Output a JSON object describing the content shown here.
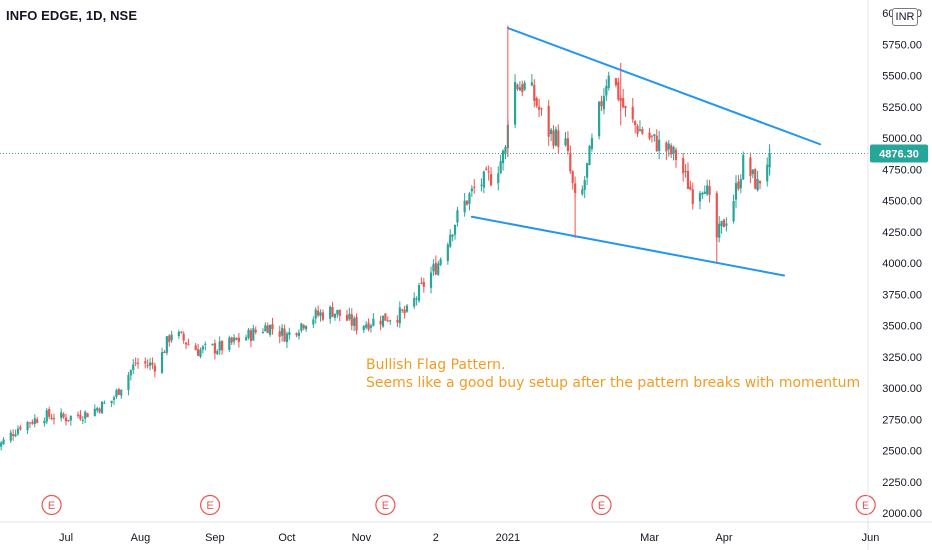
{
  "header": {
    "symbol_title": "INFO EDGE, 1D, NSE",
    "currency": "INR"
  },
  "annotation": {
    "line1": "Bullish Flag Pattern.",
    "line2": "Seems like a good buy setup after the pattern breaks with momentum"
  },
  "colors": {
    "up": "#26a69a",
    "down": "#ef5350",
    "trendline": "#2196f3",
    "annotation": "#f39b1f",
    "price_label_bg": "#26a69a",
    "earnings": "#ef5350"
  },
  "chart_data": {
    "type": "candlestick",
    "x_axis_ticks": [
      {
        "label": "Jul",
        "date": "2020-07-01"
      },
      {
        "label": "Aug",
        "date": "2020-08-01"
      },
      {
        "label": "Sep",
        "date": "2020-09-01"
      },
      {
        "label": "Oct",
        "date": "2020-10-01"
      },
      {
        "label": "Nov",
        "date": "2020-11-01"
      },
      {
        "label": "2",
        "date": "2020-12-02"
      },
      {
        "label": "2021",
        "date": "2021-01-01"
      },
      {
        "label": "Mar",
        "date": "2021-03-01"
      },
      {
        "label": "Apr",
        "date": "2021-04-01"
      },
      {
        "label": "Jun",
        "date": "2021-06-01"
      }
    ],
    "y_axis_ticks": [
      "2000.00",
      "2250.00",
      "2500.00",
      "2750.00",
      "3000.00",
      "3250.00",
      "3500.00",
      "3750.00",
      "4000.00",
      "4250.00",
      "4500.00",
      "4750.00",
      "5000.00",
      "5250.00",
      "5500.00",
      "5750.00",
      "6000.00"
    ],
    "ylim": [
      2000,
      6000
    ],
    "last_price": "4876.30",
    "last_price_value": 4876.3,
    "earnings_marker_label": "E",
    "earnings_dates": [
      "2020-06-25",
      "2020-08-30",
      "2020-11-11",
      "2021-02-09",
      "2021-05-30"
    ],
    "trendlines": [
      {
        "name": "upper",
        "from": {
          "date": "2021-01-01",
          "price": 5880
        },
        "to": {
          "date": "2021-05-11",
          "price": 4950
        }
      },
      {
        "name": "lower",
        "from": {
          "date": "2020-12-17",
          "price": 4370
        },
        "to": {
          "date": "2021-04-26",
          "price": 3900
        }
      }
    ],
    "path_points": [
      {
        "date": "2020-06-02",
        "price": 2520
      },
      {
        "date": "2020-06-12",
        "price": 2700
      },
      {
        "date": "2020-06-22",
        "price": 2780
      },
      {
        "date": "2020-07-01",
        "price": 2760
      },
      {
        "date": "2020-07-10",
        "price": 2800
      },
      {
        "date": "2020-07-20",
        "price": 2900
      },
      {
        "date": "2020-07-30",
        "price": 3200
      },
      {
        "date": "2020-08-08",
        "price": 3180
      },
      {
        "date": "2020-08-14",
        "price": 3450
      },
      {
        "date": "2020-08-25",
        "price": 3300
      },
      {
        "date": "2020-09-05",
        "price": 3330
      },
      {
        "date": "2020-09-15",
        "price": 3420
      },
      {
        "date": "2020-09-23",
        "price": 3500
      },
      {
        "date": "2020-10-01",
        "price": 3420
      },
      {
        "date": "2020-10-10",
        "price": 3560
      },
      {
        "date": "2020-10-20",
        "price": 3620
      },
      {
        "date": "2020-10-30",
        "price": 3500
      },
      {
        "date": "2020-11-10",
        "price": 3560
      },
      {
        "date": "2020-11-20",
        "price": 3600
      },
      {
        "date": "2020-11-27",
        "price": 3830
      },
      {
        "date": "2020-12-03",
        "price": 4000
      },
      {
        "date": "2020-12-08",
        "price": 4250
      },
      {
        "date": "2020-12-13",
        "price": 4450
      },
      {
        "date": "2020-12-19",
        "price": 4620
      },
      {
        "date": "2020-12-26",
        "price": 4700
      },
      {
        "date": "2020-12-31",
        "price": 4900
      },
      {
        "date": "2021-01-02",
        "price": 5450
      },
      {
        "date": "2021-01-10",
        "price": 5400
      },
      {
        "date": "2021-01-18",
        "price": 5050
      },
      {
        "date": "2021-01-25",
        "price": 4950
      },
      {
        "date": "2021-01-30",
        "price": 4380
      },
      {
        "date": "2021-02-05",
        "price": 4950
      },
      {
        "date": "2021-02-12",
        "price": 5550
      },
      {
        "date": "2021-02-20",
        "price": 5150
      },
      {
        "date": "2021-03-01",
        "price": 5000
      },
      {
        "date": "2021-03-12",
        "price": 4850
      },
      {
        "date": "2021-03-19",
        "price": 4550
      },
      {
        "date": "2021-03-24",
        "price": 4650
      },
      {
        "date": "2021-03-29",
        "price": 4200
      },
      {
        "date": "2021-04-04",
        "price": 4450
      },
      {
        "date": "2021-04-09",
        "price": 4800
      },
      {
        "date": "2021-04-15",
        "price": 4620
      },
      {
        "date": "2021-04-20",
        "price": 4876
      }
    ]
  }
}
